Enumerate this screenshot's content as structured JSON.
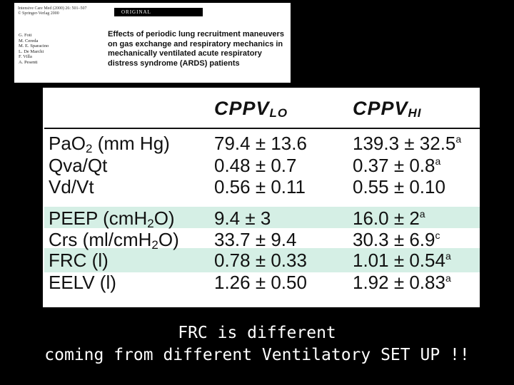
{
  "paper": {
    "journal_line1": "Intensive Care Med (2000) 26: 501–507",
    "journal_line2": "© Springer-Verlag 2000",
    "badge": "ORIGINAL",
    "authors": [
      "G. Foti",
      "M. Cereda",
      "M. E. Sparacino",
      "L. De Marchi",
      "F. Villa",
      "A. Pesenti"
    ],
    "title": "Effects of periodic lung recruitment maneuvers on gas exchange and respiratory mechanics in mechanically ventilated acute respiratory distress syndrome (ARDS) patients"
  },
  "table": {
    "col1_main": "CPPV",
    "col1_sub": "LO",
    "col2_main": "CPPV",
    "col2_sub": "HI",
    "rows": [
      {
        "pre": "PaO",
        "sub": "2",
        "post": " (mm Hg)",
        "v1": "79.4 ± 13.6",
        "v1_sup": "",
        "v2": "139.3 ± 32.5",
        "v2_sup": "a"
      },
      {
        "pre": "Qva/Qt",
        "sub": "",
        "post": "",
        "v1": "0.48 ± 0.7",
        "v1_sup": "",
        "v2": "0.37 ± 0.8",
        "v2_sup": "a"
      },
      {
        "pre": "Vd/Vt",
        "sub": "",
        "post": "",
        "v1": "0.56 ± 0.11",
        "v1_sup": "",
        "v2": "0.55 ± 0.10",
        "v2_sup": ""
      },
      {
        "pre": "PEEP (cmH",
        "sub": "2",
        "post": "O)",
        "v1": "9.4 ± 3",
        "v1_sup": "",
        "v2": "16.0 ± 2",
        "v2_sup": "a"
      },
      {
        "pre": "Crs (ml/cmH",
        "sub": "2",
        "post": "O)",
        "v1": "33.7 ± 9.4",
        "v1_sup": "",
        "v2": "30.3 ± 6.9",
        "v2_sup": "c"
      },
      {
        "pre": "FRC (l)",
        "sub": "",
        "post": "",
        "v1": "0.78 ± 0.33",
        "v1_sup": "",
        "v2": "1.01 ± 0.54",
        "v2_sup": "a"
      },
      {
        "pre": "EELV (l)",
        "sub": "",
        "post": "",
        "v1": "1.26 ± 0.50",
        "v1_sup": "",
        "v2": "1.92 ± 0.83",
        "v2_sup": "a"
      }
    ]
  },
  "caption": {
    "line1": "FRC is different",
    "line2": "coming from different Ventilatory SET UP !!"
  },
  "colors": {
    "highlight": "#d5efe5",
    "background": "#000000"
  }
}
